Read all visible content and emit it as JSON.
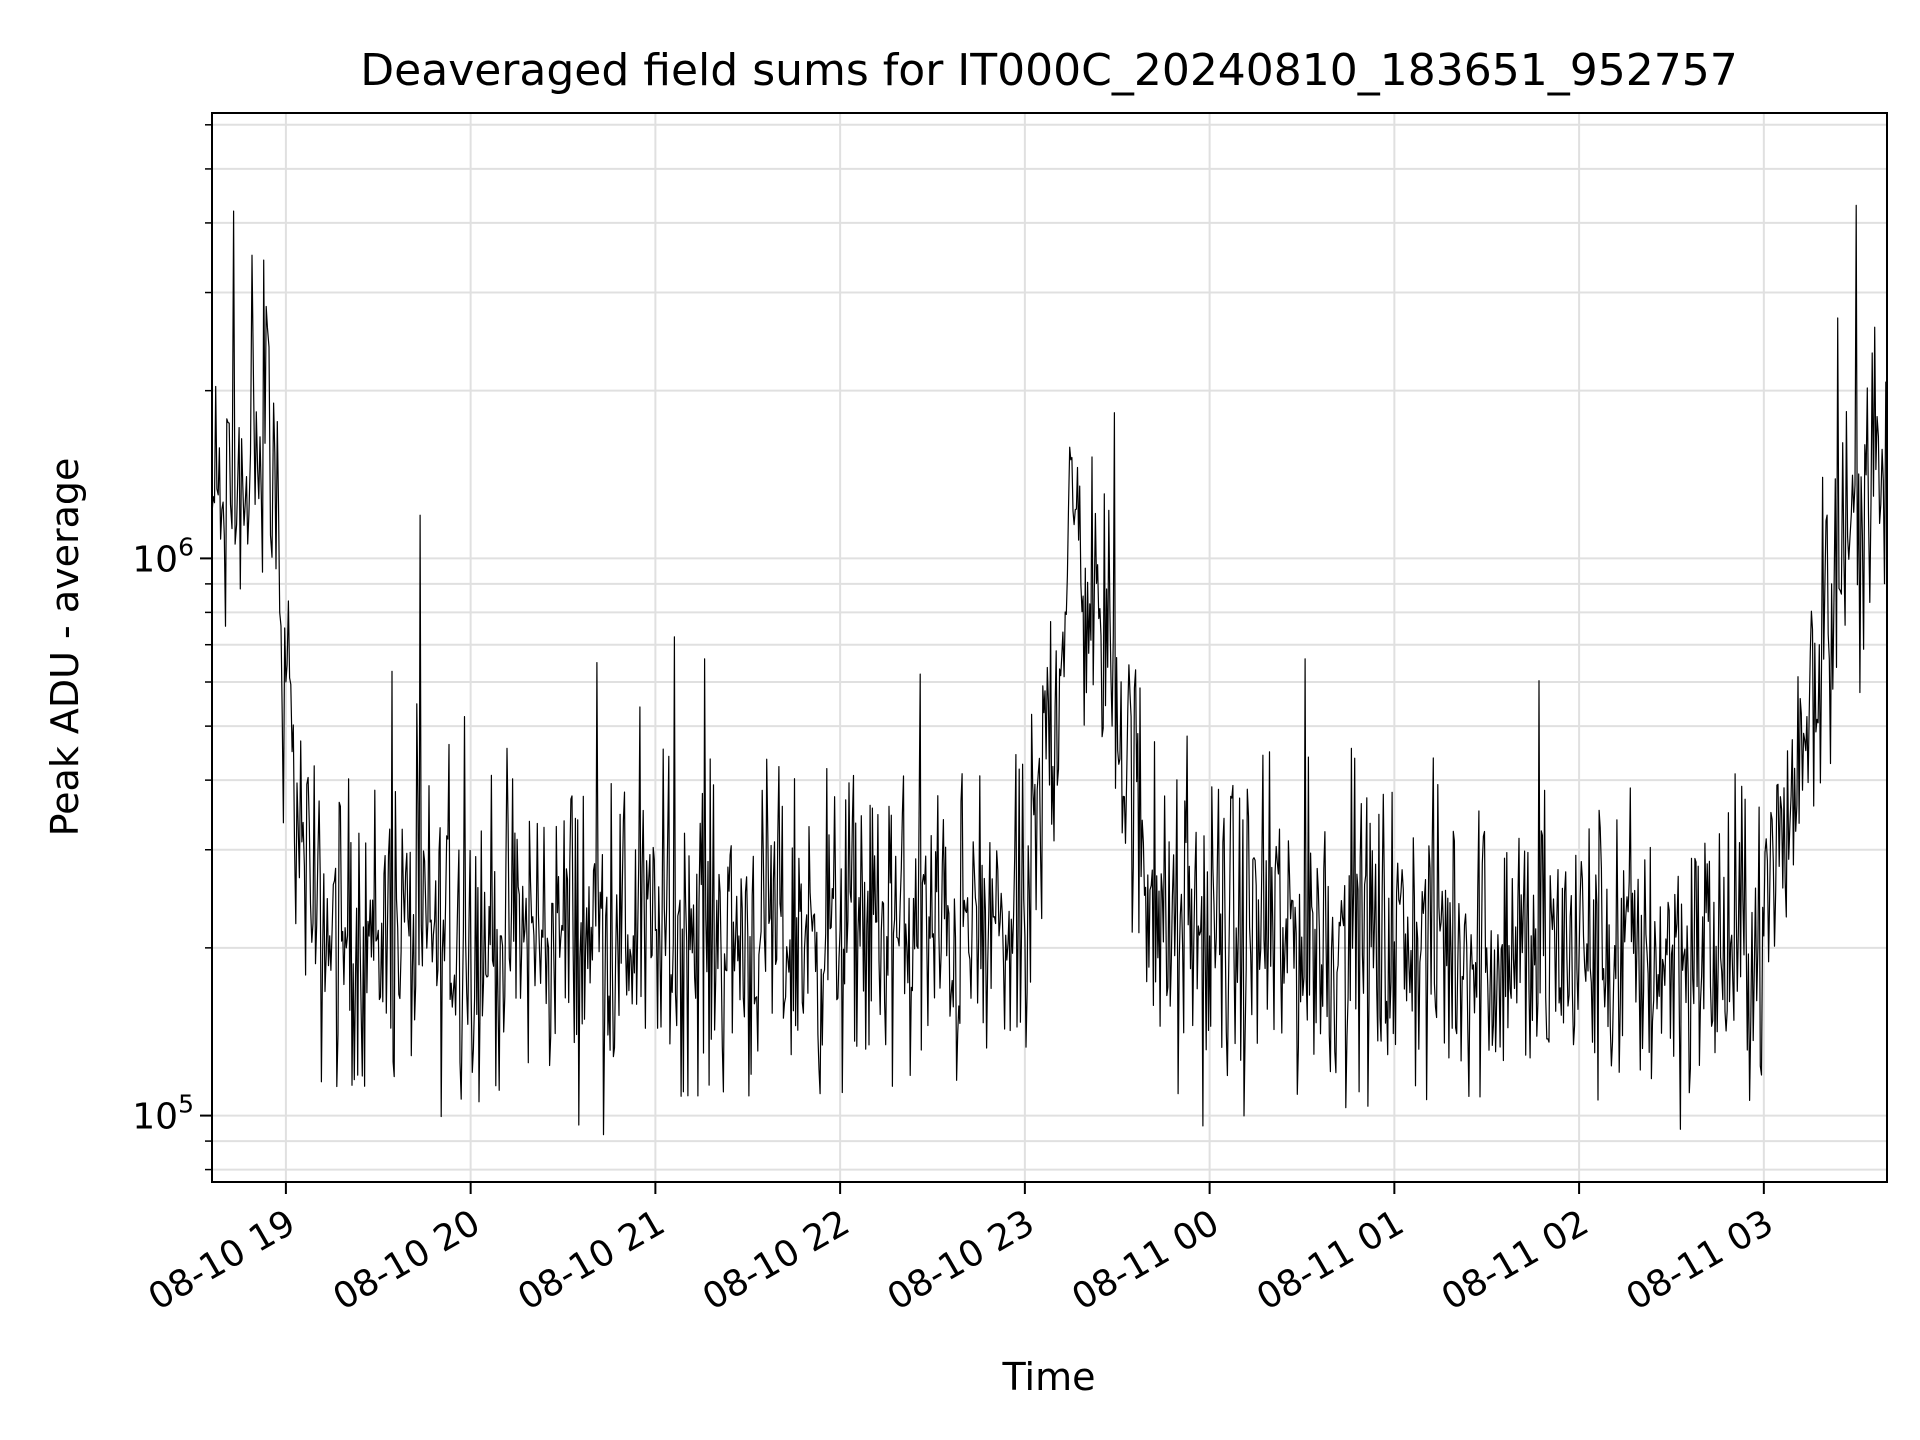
{
  "chart_data": {
    "type": "line",
    "title": "Deaveraged field sums for IT000C_20240810_183651_952757",
    "xlabel": "Time",
    "ylabel": "Peak ADU - average",
    "y_scale": "log",
    "ylim": [
      76000,
      6300000
    ],
    "xlim": [
      "2024-08-10 18:36",
      "2024-08-11 03:40"
    ],
    "grid": true,
    "colors": {
      "line": "#000000",
      "grid": "#e0e0e0",
      "axes": "#000000",
      "background": "#ffffff"
    },
    "x_ticks": [
      {
        "t": "2024-08-10 19:00",
        "label": "08-10 19"
      },
      {
        "t": "2024-08-10 20:00",
        "label": "08-10 20"
      },
      {
        "t": "2024-08-10 21:00",
        "label": "08-10 21"
      },
      {
        "t": "2024-08-10 22:00",
        "label": "08-10 22"
      },
      {
        "t": "2024-08-10 23:00",
        "label": "08-10 23"
      },
      {
        "t": "2024-08-11 00:00",
        "label": "08-11 00"
      },
      {
        "t": "2024-08-11 01:00",
        "label": "08-11 01"
      },
      {
        "t": "2024-08-11 02:00",
        "label": "08-11 02"
      },
      {
        "t": "2024-08-11 03:00",
        "label": "08-11 03"
      }
    ],
    "y_ticks": [
      {
        "value": 100000,
        "base": "10",
        "exp": "5"
      },
      {
        "value": 1000000,
        "base": "10",
        "exp": "6"
      }
    ],
    "series": [
      {
        "points": [
          [
            "2024-08-10 18:36",
            1200000
          ],
          [
            "2024-08-10 18:38",
            1300000
          ],
          [
            "2024-08-10 18:40",
            1100000
          ],
          [
            "2024-08-10 18:42",
            1250000
          ],
          [
            "2024-08-10 18:43",
            4200000
          ],
          [
            "2024-08-10 18:44",
            1150000
          ],
          [
            "2024-08-10 18:46",
            1350000
          ],
          [
            "2024-08-10 18:48",
            1200000
          ],
          [
            "2024-08-10 18:49",
            3500000
          ],
          [
            "2024-08-10 18:50",
            1250000
          ],
          [
            "2024-08-10 18:52",
            1300000
          ],
          [
            "2024-08-10 18:54",
            2600000
          ],
          [
            "2024-08-10 18:55",
            1100000
          ],
          [
            "2024-08-10 18:56",
            1900000
          ],
          [
            "2024-08-10 18:58",
            800000
          ],
          [
            "2024-08-10 19:00",
            600000
          ],
          [
            "2024-08-10 19:02",
            450000
          ],
          [
            "2024-08-10 19:04",
            330000
          ],
          [
            "2024-08-10 19:06",
            280000
          ],
          [
            "2024-08-10 19:08",
            240000
          ],
          [
            "2024-08-10 19:10",
            220000
          ],
          [
            "2024-08-10 19:15",
            215000
          ],
          [
            "2024-08-10 19:20",
            210000
          ],
          [
            "2024-08-10 19:30",
            215000
          ],
          [
            "2024-08-10 19:40",
            210000
          ],
          [
            "2024-08-10 19:58",
            520000
          ],
          [
            "2024-08-10 20:10",
            210000
          ],
          [
            "2024-08-10 20:30",
            215000
          ],
          [
            "2024-08-10 20:41",
            650000
          ],
          [
            "2024-08-10 21:00",
            215000
          ],
          [
            "2024-08-10 21:16",
            660000
          ],
          [
            "2024-08-10 21:30",
            210000
          ],
          [
            "2024-08-10 22:00",
            215000
          ],
          [
            "2024-08-10 22:26",
            620000
          ],
          [
            "2024-08-10 22:45",
            210000
          ],
          [
            "2024-08-10 23:00",
            210000
          ],
          [
            "2024-08-10 23:16",
            1150000
          ],
          [
            "2024-08-10 23:24",
            780000
          ],
          [
            "2024-08-10 23:45",
            205000
          ],
          [
            "2024-08-11 00:00",
            210000
          ],
          [
            "2024-08-11 00:31",
            660000
          ],
          [
            "2024-08-11 01:00",
            205000
          ],
          [
            "2024-08-11 01:30",
            200000
          ],
          [
            "2024-08-11 02:00",
            195000
          ],
          [
            "2024-08-11 02:30",
            195000
          ],
          [
            "2024-08-11 02:55",
            195000
          ],
          [
            "2024-08-11 03:00",
            210000
          ],
          [
            "2024-08-11 03:05",
            280000
          ],
          [
            "2024-08-11 03:10",
            420000
          ],
          [
            "2024-08-11 03:14",
            520000
          ],
          [
            "2024-08-11 03:18",
            700000
          ],
          [
            "2024-08-11 03:22",
            900000
          ],
          [
            "2024-08-11 03:24",
            2700000
          ],
          [
            "2024-08-11 03:26",
            1000000
          ],
          [
            "2024-08-11 03:28",
            1100000
          ],
          [
            "2024-08-11 03:30",
            4300000
          ],
          [
            "2024-08-11 03:32",
            1100000
          ],
          [
            "2024-08-11 03:34",
            1200000
          ],
          [
            "2024-08-11 03:36",
            2600000
          ],
          [
            "2024-08-11 03:38",
            1250000
          ],
          [
            "2024-08-11 03:40",
            1400000
          ]
        ]
      }
    ]
  }
}
